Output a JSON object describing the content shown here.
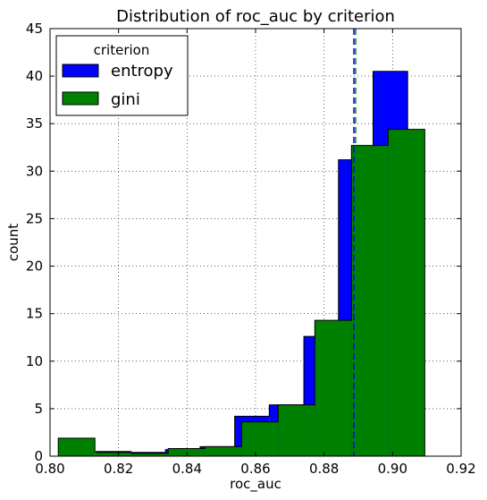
{
  "chart_data": {
    "type": "histogram",
    "title": "Distribution of roc_auc by criterion",
    "xlabel": "roc_auc",
    "ylabel": "count",
    "xlim": [
      0.8,
      0.92
    ],
    "ylim": [
      0,
      45
    ],
    "xticks": [
      0.8,
      0.82,
      0.84,
      0.86,
      0.88,
      0.9,
      0.92
    ],
    "xtick_labels": [
      "0.80",
      "0.82",
      "0.84",
      "0.86",
      "0.88",
      "0.90",
      "0.92"
    ],
    "yticks": [
      0,
      5,
      10,
      15,
      20,
      25,
      30,
      35,
      40,
      45
    ],
    "ytick_labels": [
      "0",
      "5",
      "10",
      "15",
      "20",
      "25",
      "30",
      "35",
      "40",
      "45"
    ],
    "grid": true,
    "legend": {
      "title": "criterion",
      "placement": "top-left"
    },
    "series": [
      {
        "name": "entropy",
        "color": "#0000ff",
        "bin_edges": [
          0.8135,
          0.8236,
          0.8337,
          0.8438,
          0.8539,
          0.864,
          0.8741,
          0.8842,
          0.8943,
          0.9044
        ],
        "values": [
          0.5,
          0.4,
          0.7,
          1.0,
          4.2,
          5.4,
          12.6,
          31.2,
          40.5
        ],
        "mean": 0.8887
      },
      {
        "name": "gini",
        "color": "#008000",
        "bin_edges": [
          0.8024,
          0.8131,
          0.8238,
          0.8345,
          0.8452,
          0.8559,
          0.8666,
          0.8773,
          0.888,
          0.8987,
          0.9094
        ],
        "values": [
          1.9,
          0.4,
          0.3,
          0.8,
          1.0,
          3.6,
          5.4,
          14.3,
          32.7,
          34.4
        ],
        "mean": 0.8892
      }
    ]
  }
}
